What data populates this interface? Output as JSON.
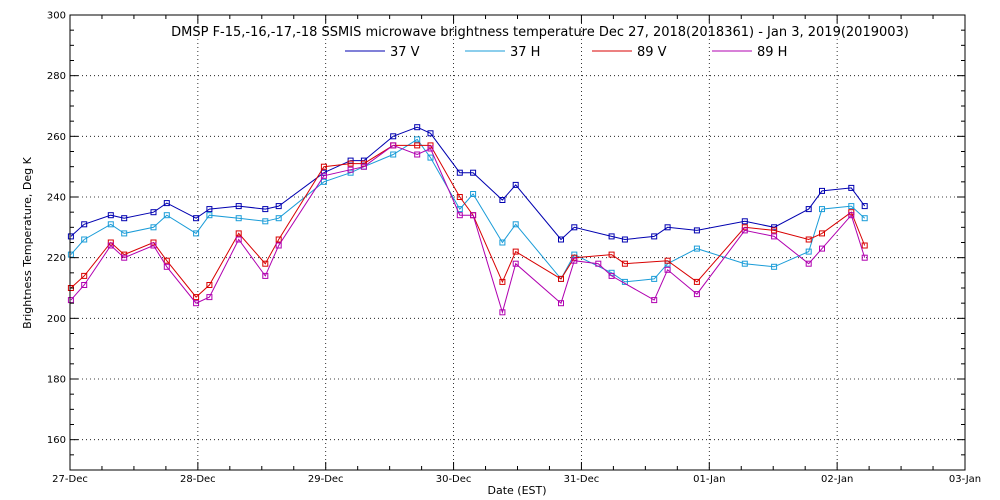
{
  "chart_data": {
    "type": "line",
    "title": "DMSP F-15,-16,-17,-18 SSMIS microwave brightness temperature Dec 27, 2018(2018361) - Jan  3, 2019(2019003)",
    "xlabel": "Date (EST)",
    "ylabel": "Brightness Temperature, Deg K",
    "xlim": [
      "2018-12-27",
      "2019-01-03"
    ],
    "ylim": [
      150,
      300
    ],
    "x_tick_labels": [
      "27-Dec",
      "28-Dec",
      "29-Dec",
      "30-Dec",
      "31-Dec",
      "01-Jan",
      "02-Jan",
      "03-Jan"
    ],
    "y_ticks": [
      160,
      180,
      200,
      220,
      240,
      260,
      280,
      300
    ],
    "grid": true,
    "legend_position": "top",
    "marker": "square",
    "series": [
      {
        "name": "37 V",
        "color": "#0000b0",
        "points": [
          [
            "2018-12-27 00:10",
            227
          ],
          [
            "2018-12-27 02:40",
            231
          ],
          [
            "2018-12-27 07:40",
            234
          ],
          [
            "2018-12-27 10:10",
            233
          ],
          [
            "2018-12-27 15:40",
            235
          ],
          [
            "2018-12-27 18:10",
            238
          ],
          [
            "2018-12-27 23:40",
            233
          ],
          [
            "2018-12-28 02:10",
            236
          ],
          [
            "2018-12-28 07:40",
            237
          ],
          [
            "2018-12-28 12:40",
            236
          ],
          [
            "2018-12-28 15:10",
            237
          ],
          [
            "2018-12-28 23:40",
            248
          ],
          [
            "2018-12-29 04:40",
            252
          ],
          [
            "2018-12-29 07:10",
            252
          ],
          [
            "2018-12-29 12:40",
            260
          ],
          [
            "2018-12-29 17:10",
            263
          ],
          [
            "2018-12-29 19:40",
            261
          ],
          [
            "2018-12-30 01:10",
            248
          ],
          [
            "2018-12-30 03:40",
            248
          ],
          [
            "2018-12-30 09:10",
            239
          ],
          [
            "2018-12-30 11:40",
            244
          ],
          [
            "2018-12-30 20:10",
            226
          ],
          [
            "2018-12-30 22:40",
            230
          ],
          [
            "2018-12-31 05:40",
            227
          ],
          [
            "2018-12-31 08:10",
            226
          ],
          [
            "2018-12-31 13:40",
            227
          ],
          [
            "2018-12-31 16:10",
            230
          ],
          [
            "2018-12-31 21:40",
            229
          ],
          [
            "2019-01-01 06:40",
            232
          ],
          [
            "2019-01-01 12:10",
            230
          ],
          [
            "2019-01-01 18:40",
            236
          ],
          [
            "2019-01-01 21:10",
            242
          ],
          [
            "2019-01-02 02:40",
            243
          ],
          [
            "2019-01-02 05:10",
            237
          ]
        ]
      },
      {
        "name": "37 H",
        "color": "#1a9cd8",
        "points": [
          [
            "2018-12-27 00:10",
            221
          ],
          [
            "2018-12-27 02:40",
            226
          ],
          [
            "2018-12-27 07:40",
            231
          ],
          [
            "2018-12-27 10:10",
            228
          ],
          [
            "2018-12-27 15:40",
            230
          ],
          [
            "2018-12-27 18:10",
            234
          ],
          [
            "2018-12-27 23:40",
            228
          ],
          [
            "2018-12-28 02:10",
            234
          ],
          [
            "2018-12-28 07:40",
            233
          ],
          [
            "2018-12-28 12:40",
            232
          ],
          [
            "2018-12-28 15:10",
            233
          ],
          [
            "2018-12-28 23:40",
            245
          ],
          [
            "2018-12-29 04:40",
            248
          ],
          [
            "2018-12-29 07:10",
            250
          ],
          [
            "2018-12-29 12:40",
            254
          ],
          [
            "2018-12-29 17:10",
            259
          ],
          [
            "2018-12-29 19:40",
            253
          ],
          [
            "2018-12-30 01:10",
            236
          ],
          [
            "2018-12-30 03:40",
            241
          ],
          [
            "2018-12-30 09:10",
            225
          ],
          [
            "2018-12-30 11:40",
            231
          ],
          [
            "2018-12-30 20:10",
            213
          ],
          [
            "2018-12-30 22:40",
            221
          ],
          [
            "2018-12-31 05:40",
            215
          ],
          [
            "2018-12-31 08:10",
            212
          ],
          [
            "2018-12-31 13:40",
            213
          ],
          [
            "2018-12-31 16:10",
            218
          ],
          [
            "2018-12-31 21:40",
            223
          ],
          [
            "2019-01-01 06:40",
            218
          ],
          [
            "2019-01-01 12:10",
            217
          ],
          [
            "2019-01-01 18:40",
            222
          ],
          [
            "2019-01-01 21:10",
            236
          ],
          [
            "2019-01-02 02:40",
            237
          ],
          [
            "2019-01-02 05:10",
            233
          ]
        ]
      },
      {
        "name": "89 V",
        "color": "#d80000",
        "points": [
          [
            "2018-12-27 00:10",
            210
          ],
          [
            "2018-12-27 02:40",
            214
          ],
          [
            "2018-12-27 07:40",
            225
          ],
          [
            "2018-12-27 10:10",
            221
          ],
          [
            "2018-12-27 15:40",
            225
          ],
          [
            "2018-12-27 18:10",
            219
          ],
          [
            "2018-12-27 23:40",
            207
          ],
          [
            "2018-12-28 02:10",
            211
          ],
          [
            "2018-12-28 07:40",
            228
          ],
          [
            "2018-12-28 12:40",
            218
          ],
          [
            "2018-12-28 15:10",
            226
          ],
          [
            "2018-12-28 23:40",
            250
          ],
          [
            "2018-12-29 04:40",
            251
          ],
          [
            "2018-12-29 07:10",
            251
          ],
          [
            "2018-12-29 12:40",
            257
          ],
          [
            "2018-12-29 17:10",
            257
          ],
          [
            "2018-12-29 19:40",
            257
          ],
          [
            "2018-12-30 01:10",
            240
          ],
          [
            "2018-12-30 03:40",
            234
          ],
          [
            "2018-12-30 09:10",
            212
          ],
          [
            "2018-12-30 11:40",
            222
          ],
          [
            "2018-12-30 20:10",
            213
          ],
          [
            "2018-12-30 22:40",
            220
          ],
          [
            "2018-12-31 05:40",
            221
          ],
          [
            "2018-12-31 08:10",
            218
          ],
          [
            "2018-12-31 16:10",
            219
          ],
          [
            "2018-12-31 21:40",
            212
          ],
          [
            "2019-01-01 06:40",
            230
          ],
          [
            "2019-01-01 12:10",
            229
          ],
          [
            "2019-01-01 18:40",
            226
          ],
          [
            "2019-01-01 21:10",
            228
          ],
          [
            "2019-01-02 02:40",
            235
          ],
          [
            "2019-01-02 05:10",
            224
          ]
        ]
      },
      {
        "name": "89 H",
        "color": "#b000b0",
        "points": [
          [
            "2018-12-27 00:10",
            206
          ],
          [
            "2018-12-27 02:40",
            211
          ],
          [
            "2018-12-27 07:40",
            224
          ],
          [
            "2018-12-27 10:10",
            220
          ],
          [
            "2018-12-27 15:40",
            224
          ],
          [
            "2018-12-27 18:10",
            217
          ],
          [
            "2018-12-27 23:40",
            205
          ],
          [
            "2018-12-28 02:10",
            207
          ],
          [
            "2018-12-28 07:40",
            226
          ],
          [
            "2018-12-28 12:40",
            214
          ],
          [
            "2018-12-28 15:10",
            224
          ],
          [
            "2018-12-28 23:40",
            247
          ],
          [
            "2018-12-29 04:40",
            249
          ],
          [
            "2018-12-29 07:10",
            250
          ],
          [
            "2018-12-29 12:40",
            257
          ],
          [
            "2018-12-29 17:10",
            254
          ],
          [
            "2018-12-29 19:40",
            256
          ],
          [
            "2018-12-30 01:10",
            234
          ],
          [
            "2018-12-30 03:40",
            234
          ],
          [
            "2018-12-30 09:10",
            202
          ],
          [
            "2018-12-30 11:40",
            218
          ],
          [
            "2018-12-30 20:10",
            205
          ],
          [
            "2018-12-30 22:40",
            219
          ],
          [
            "2018-12-31 03:10",
            218
          ],
          [
            "2018-12-31 05:40",
            214
          ],
          [
            "2018-12-31 13:40",
            206
          ],
          [
            "2018-12-31 16:10",
            216
          ],
          [
            "2018-12-31 21:40",
            208
          ],
          [
            "2019-01-01 06:40",
            229
          ],
          [
            "2019-01-01 12:10",
            227
          ],
          [
            "2019-01-01 18:40",
            218
          ],
          [
            "2019-01-01 21:10",
            223
          ],
          [
            "2019-01-02 02:40",
            234
          ],
          [
            "2019-01-02 05:10",
            220
          ]
        ]
      }
    ]
  }
}
